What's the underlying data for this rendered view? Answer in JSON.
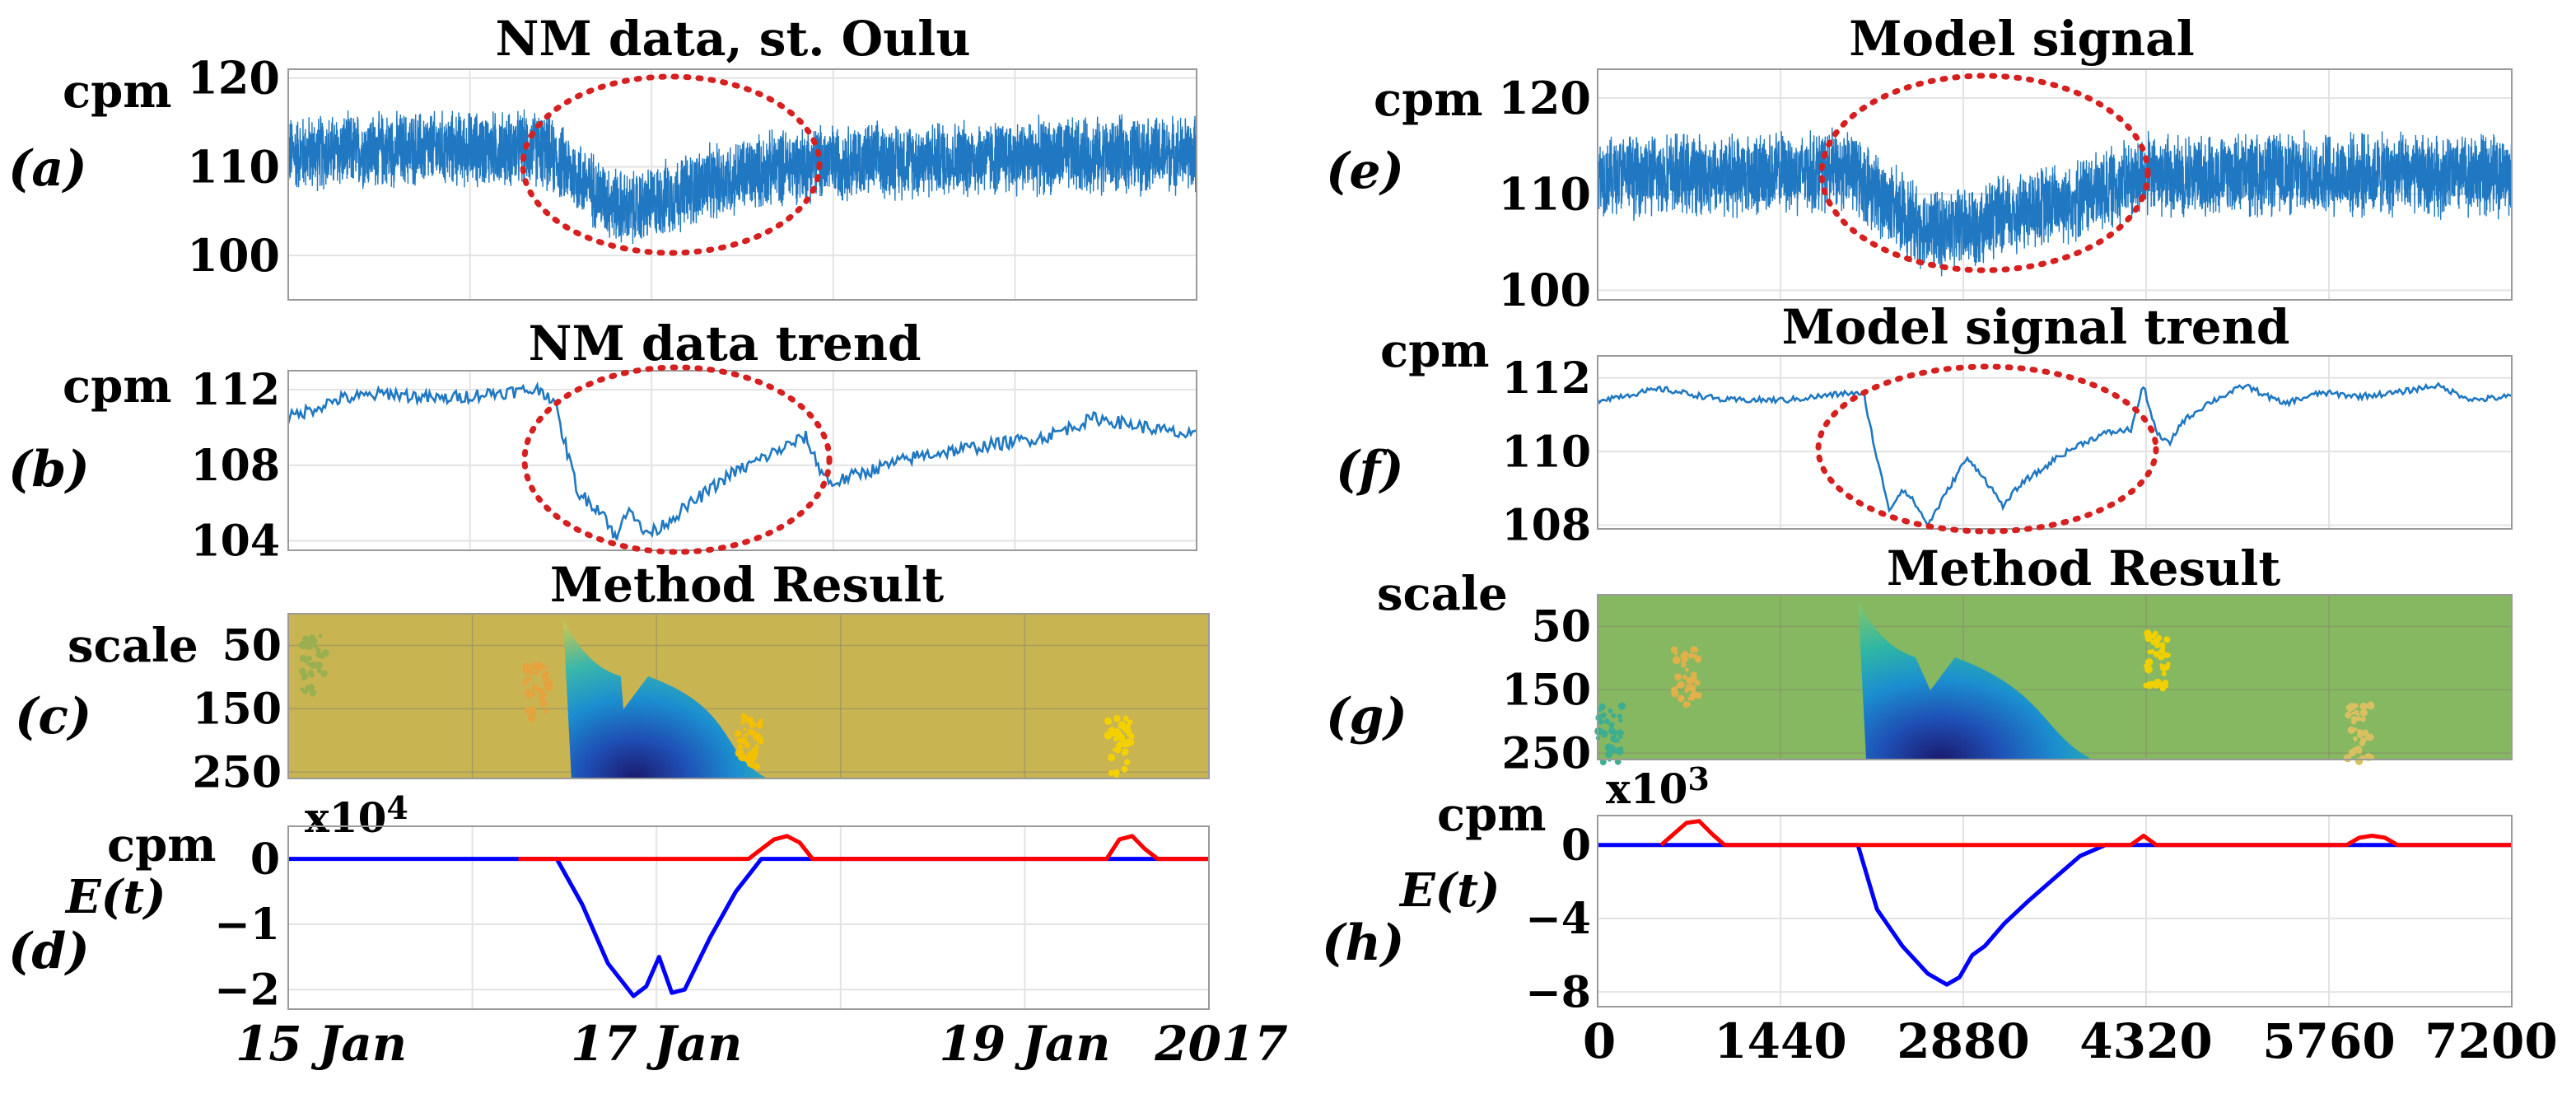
{
  "colors": {
    "series": "#1f78c1",
    "blue_line": "#0000ff",
    "red_line": "#ff0000",
    "ellipse": "#d62020",
    "heat_bg_left": "#c9b452",
    "heat_bg_right": "#85b860"
  },
  "chart_data": [
    {
      "id": "a",
      "panel_label": "(a)",
      "type": "line",
      "title": "NM data, st. Oulu",
      "ylabel": "cpm",
      "yticks": [
        100,
        110,
        120
      ],
      "ylim": [
        95,
        121
      ],
      "xlim": [
        0,
        7200
      ],
      "series": [
        {
          "name": "NM data",
          "kind": "noise",
          "x": [
            0,
            1000,
            2000,
            2200,
            2500,
            2700,
            3000,
            3300,
            3600,
            3900,
            4200,
            5500,
            7200
          ],
          "y": [
            111.5,
            112,
            112,
            110,
            106.5,
            105,
            106.5,
            108,
            109,
            110,
            110.5,
            111,
            111.5
          ],
          "amplitude": 4
        }
      ],
      "annotation": "dotted ellipse around Forbush decrease"
    },
    {
      "id": "b",
      "panel_label": "(b)",
      "type": "line",
      "title": "NM data trend",
      "ylabel": "cpm",
      "yticks": [
        104,
        108,
        112
      ],
      "ylim": [
        103.5,
        113
      ],
      "xlim": [
        0,
        7200
      ],
      "series": [
        {
          "name": "NM data trend",
          "kind": "line",
          "x": [
            0,
            400,
            800,
            1200,
            1600,
            2000,
            2100,
            2200,
            2300,
            2500,
            2600,
            2700,
            2800,
            2900,
            3000,
            3100,
            3300,
            3500,
            3800,
            4100,
            4200,
            4300,
            4500,
            5000,
            5500,
            6000,
            6400,
            6800,
            7200
          ],
          "y": [
            110.5,
            111.5,
            111.8,
            111.5,
            111.8,
            112,
            111.5,
            109,
            106.5,
            105.5,
            104,
            106,
            104.5,
            104.5,
            105,
            105.5,
            106.5,
            107.5,
            108.5,
            109.5,
            108,
            107,
            107.5,
            108.5,
            109,
            109.5,
            110.5,
            110,
            109.5
          ],
          "jitter": 0.35
        }
      ],
      "annotation": "dotted ellipse around Forbush decrease"
    },
    {
      "id": "c",
      "panel_label": "(c)",
      "type": "heatmap",
      "title": "Method Result",
      "ylabel": "scale",
      "yticks": [
        50,
        150,
        250
      ],
      "ylim": [
        0,
        260
      ],
      "xlim": [
        0,
        7200
      ],
      "features": [
        {
          "kind": "wedge",
          "x_start": 2150,
          "x_end": 3750,
          "peak_x": 2750,
          "depth": "strong"
        },
        {
          "kind": "speckle",
          "x": 1950,
          "scale": 120,
          "color": "#e6a23c"
        },
        {
          "kind": "speckle",
          "x": 3600,
          "scale": 200,
          "color": "#f2c000"
        },
        {
          "kind": "speckle",
          "x": 6500,
          "scale": 210,
          "color": "#f5d000"
        },
        {
          "kind": "speckle",
          "x": 200,
          "scale": 80,
          "color": "#9ab050"
        }
      ]
    },
    {
      "id": "d",
      "panel_label": "(d)",
      "type": "line",
      "title": "",
      "ylabel": "cpm",
      "ylabel2": "E(t)",
      "exponent": "x10",
      "exponent_power": "4",
      "yticks": [
        0,
        -1,
        -2
      ],
      "ylim": [
        -2.3,
        0.5
      ],
      "xlim": [
        0,
        7200
      ],
      "xticks": [
        {
          "label": "15 Jan",
          "x": 0
        },
        {
          "label": "17 Jan",
          "x": 2880
        },
        {
          "label": "19 Jan",
          "x": 5760
        },
        {
          "label": "2017",
          "x": 7200
        }
      ],
      "series": [
        {
          "name": "negative component",
          "color": "#0000ff",
          "x": [
            0,
            2100,
            2300,
            2500,
            2700,
            2800,
            2900,
            3000,
            3100,
            3300,
            3500,
            3700,
            7200
          ],
          "y": [
            0,
            0,
            -0.7,
            -1.6,
            -2.1,
            -1.95,
            -1.5,
            -2.05,
            -2.0,
            -1.2,
            -0.5,
            0,
            0
          ]
        },
        {
          "name": "positive component",
          "color": "#ff0000",
          "x": [
            1800,
            3600,
            3700,
            3800,
            3900,
            4000,
            4100,
            6400,
            6500,
            6600,
            6700,
            6800,
            7200
          ],
          "y": [
            0,
            0,
            0.15,
            0.3,
            0.35,
            0.25,
            0,
            0,
            0.3,
            0.35,
            0.15,
            0,
            0
          ]
        }
      ]
    },
    {
      "id": "e",
      "panel_label": "(e)",
      "type": "line",
      "title": "Model signal",
      "ylabel": "cpm",
      "yticks": [
        100,
        110,
        120
      ],
      "ylim": [
        99,
        123
      ],
      "xlim": [
        0,
        7200
      ],
      "series": [
        {
          "name": "Model signal",
          "kind": "noise",
          "x": [
            0,
            1000,
            2000,
            2200,
            2500,
            2700,
            3000,
            3300,
            3600,
            3900,
            4300,
            5500,
            7200
          ],
          "y": [
            112,
            112,
            112.5,
            110,
            107,
            106,
            107,
            108,
            109,
            110,
            112,
            112,
            112
          ],
          "amplitude": 4
        }
      ],
      "annotation": "dotted ellipse around decrease"
    },
    {
      "id": "f",
      "panel_label": "(f)",
      "type": "line",
      "title": "Model signal trend",
      "ylabel": "cpm",
      "yticks": [
        108,
        110,
        112
      ],
      "ylim": [
        107.9,
        112.6
      ],
      "xlim": [
        0,
        7200
      ],
      "series": [
        {
          "name": "Model signal trend",
          "kind": "line",
          "x": [
            0,
            500,
            1000,
            1500,
            2000,
            2100,
            2200,
            2300,
            2400,
            2500,
            2600,
            2700,
            2800,
            2900,
            3000,
            3100,
            3200,
            3300,
            3400,
            3500,
            3600,
            3800,
            4000,
            4200,
            4300,
            4400,
            4500,
            4600,
            4800,
            5100,
            5400,
            5700,
            6000,
            6300,
            6600,
            6900,
            7200
          ],
          "y": [
            111.4,
            111.7,
            111.4,
            111.4,
            111.6,
            111.5,
            109.8,
            108.4,
            109.0,
            108.6,
            108.0,
            108.6,
            109.2,
            109.8,
            109.5,
            109.0,
            108.5,
            109.0,
            109.3,
            109.5,
            109.8,
            110.2,
            110.5,
            110.6,
            111.8,
            110.5,
            110.2,
            110.8,
            111.3,
            111.8,
            111.3,
            111.6,
            111.5,
            111.6,
            111.8,
            111.4,
            111.5
          ],
          "jitter": 0.08
        }
      ],
      "annotation": "dotted ellipse around decrease"
    },
    {
      "id": "g",
      "panel_label": "(g)",
      "type": "heatmap",
      "title": "Method Result",
      "ylabel": "scale",
      "yticks": [
        50,
        150,
        250
      ],
      "ylim": [
        0,
        260
      ],
      "xlim": [
        0,
        7200
      ],
      "features": [
        {
          "kind": "wedge",
          "x_start": 2050,
          "x_end": 3900,
          "peak_x": 2750,
          "depth": "strong"
        },
        {
          "kind": "speckle",
          "x": 700,
          "scale": 130,
          "color": "#e2b04a"
        },
        {
          "kind": "speckle",
          "x": 100,
          "scale": 220,
          "color": "#3fae90"
        },
        {
          "kind": "speckle",
          "x": 4400,
          "scale": 105,
          "color": "#f0d000"
        },
        {
          "kind": "speckle",
          "x": 6000,
          "scale": 220,
          "color": "#d8c060"
        }
      ]
    },
    {
      "id": "h",
      "panel_label": "(h)",
      "type": "line",
      "title": "",
      "ylabel": "cpm",
      "ylabel2": "E(t)",
      "exponent": "x10",
      "exponent_power": "3",
      "yticks": [
        0,
        -4,
        -8
      ],
      "ylim": [
        -8.8,
        1.6
      ],
      "xlim": [
        0,
        7200
      ],
      "xticks": [
        {
          "label": "0",
          "x": 0
        },
        {
          "label": "1440",
          "x": 1440
        },
        {
          "label": "2880",
          "x": 2880
        },
        {
          "label": "4320",
          "x": 4320
        },
        {
          "label": "5760",
          "x": 5760
        },
        {
          "label": "7200",
          "x": 7200
        }
      ],
      "series": [
        {
          "name": "negative component",
          "color": "#0000ff",
          "x": [
            0,
            2050,
            2200,
            2400,
            2600,
            2750,
            2850,
            2950,
            3050,
            3200,
            3400,
            3600,
            3800,
            4000,
            7200
          ],
          "y": [
            0,
            0,
            -3.5,
            -5.5,
            -7.0,
            -7.6,
            -7.2,
            -6.0,
            -5.5,
            -4.3,
            -3.0,
            -1.8,
            -0.6,
            0,
            0
          ]
        },
        {
          "name": "positive component",
          "color": "#ff0000",
          "x": [
            500,
            600,
            700,
            800,
            900,
            1000,
            4200,
            4300,
            4400,
            5900,
            6000,
            6100,
            6200,
            6300,
            7200
          ],
          "y": [
            0,
            0.6,
            1.2,
            1.3,
            0.6,
            0,
            0,
            0.5,
            0,
            0,
            0.4,
            0.5,
            0.4,
            0,
            0
          ]
        }
      ]
    }
  ]
}
